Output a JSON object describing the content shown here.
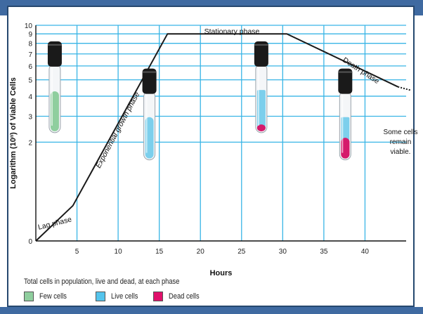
{
  "chart_data": {
    "type": "line",
    "xlabel": "Hours",
    "ylabel_parts": [
      "Logarithm (10",
      "n",
      ") of Viable Cells"
    ],
    "x_ticks": [
      5,
      10,
      15,
      20,
      25,
      30,
      35,
      40
    ],
    "y_ticks": [
      0,
      2,
      3,
      4,
      5,
      6,
      7,
      8,
      9,
      10
    ],
    "xlim": [
      0,
      45
    ],
    "ylim": [
      0,
      10
    ],
    "y_scale": "log",
    "grid": true,
    "series": [
      {
        "x": [
          0,
          4.5,
          16,
          30.5,
          44
        ],
        "y": [
          0,
          0.48,
          9,
          9,
          4.55
        ],
        "extension": {
          "x": [
            44,
            45.5
          ],
          "y": [
            4.55,
            4.35
          ],
          "style": "dotted"
        }
      }
    ],
    "phase_labels": [
      {
        "text": "Lag phase"
      },
      {
        "text": "Exponential growth phase"
      },
      {
        "text": "Stationary phase"
      },
      {
        "text": "Death phase"
      }
    ],
    "annotation": [
      "Some cells",
      "remain",
      "viable."
    ],
    "tubes": [
      {
        "x_hours": 2.3,
        "y_top_level": 8.2,
        "live_fraction": 0.58,
        "dead_fraction": 0,
        "live_color": "#8fce9e"
      },
      {
        "x_hours": 13.8,
        "y_top_level": 5.8,
        "live_fraction": 0.6,
        "dead_fraction": 0,
        "live_color": "#7ccfec"
      },
      {
        "x_hours": 27.4,
        "y_top_level": 8.2,
        "live_fraction": 0.5,
        "dead_fraction": 0.1,
        "live_color": "#7ccfec"
      },
      {
        "x_hours": 37.6,
        "y_top_level": 5.8,
        "live_fraction": 0.3,
        "dead_fraction": 0.3,
        "live_color": "#7ccfec"
      }
    ]
  },
  "legend": {
    "caption": "Total cells in population, live and dead, at each phase",
    "items": [
      {
        "label": "Few cells",
        "color": "#8fce9e"
      },
      {
        "label": "Live cells",
        "color": "#54c4ec"
      },
      {
        "label": "Dead cells",
        "color": "#e0106b"
      }
    ]
  },
  "colors": {
    "grid": "#39b5e6",
    "curve": "#1a1a1a",
    "band": "#3f6aa1",
    "dead": "#d51a6b",
    "cap": "#1a1a1a"
  }
}
